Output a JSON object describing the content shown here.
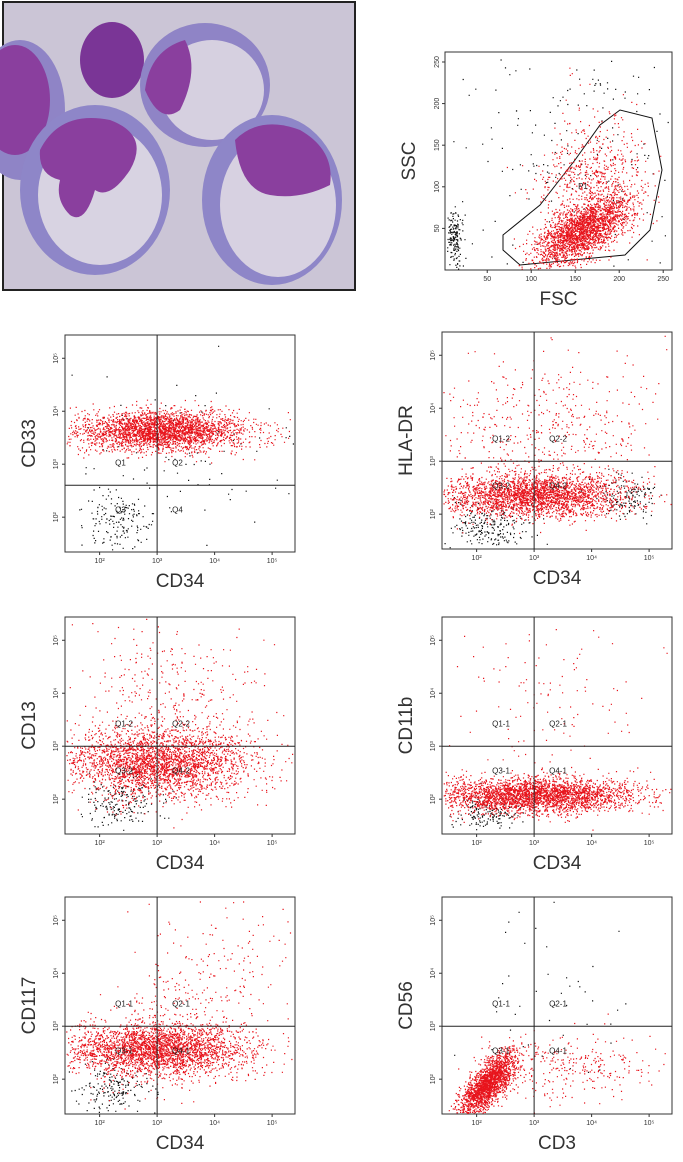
{
  "figure": {
    "gating_plot": {
      "type": "scatter",
      "x_label": "FSC",
      "y_label": "SSC",
      "gate_label": "P1",
      "xlim": [
        2,
        260
      ],
      "ylim": [
        0,
        262
      ],
      "xticks": [
        50,
        100,
        150,
        200,
        250
      ],
      "yticks": [
        50,
        100,
        150,
        200,
        250
      ]
    },
    "plots": [
      {
        "type": "scatter",
        "log_scale": true,
        "y_label": "CD33",
        "x_label": "CD34",
        "quadrants": [
          "Q1",
          "Q2",
          "Q3",
          "Q4"
        ],
        "xlim": [
          25,
          250000
        ],
        "ylim": [
          22,
          275000
        ],
        "x_gate": 1000,
        "y_gate": 400,
        "xticks": [
          {
            "value": 100,
            "label": "10²"
          },
          {
            "value": 1000,
            "label": "10³"
          },
          {
            "value": 10000,
            "label": "10⁴"
          },
          {
            "value": 100000,
            "label": "10⁵"
          }
        ],
        "yticks": [
          {
            "value": 100,
            "label": "10²"
          },
          {
            "value": 1000,
            "label": "10³"
          },
          {
            "value": 10000,
            "label": "10⁴"
          },
          {
            "value": 100000,
            "label": "10⁵"
          }
        ]
      },
      {
        "type": "scatter",
        "log_scale": true,
        "y_label": "HLA-DR",
        "x_label": "CD34",
        "quadrants": [
          "Q1-2",
          "Q2-2",
          "Q3-2",
          "Q4-2"
        ],
        "xlim": [
          25,
          250000
        ],
        "ylim": [
          22,
          275000
        ],
        "x_gate": 1000,
        "y_gate": 1000,
        "xticks": [
          {
            "value": 100,
            "label": "10²"
          },
          {
            "value": 1000,
            "label": "10³"
          },
          {
            "value": 10000,
            "label": "10⁴"
          },
          {
            "value": 100000,
            "label": "10⁵"
          }
        ],
        "yticks": [
          {
            "value": 100,
            "label": "10²"
          },
          {
            "value": 1000,
            "label": "10³"
          },
          {
            "value": 10000,
            "label": "10⁴"
          },
          {
            "value": 100000,
            "label": "10⁵"
          }
        ]
      },
      {
        "type": "scatter",
        "log_scale": true,
        "y_label": "CD13",
        "x_label": "CD34",
        "quadrants": [
          "Q1-2",
          "Q2-2",
          "Q3-2",
          "Q4-2"
        ],
        "xlim": [
          25,
          250000
        ],
        "ylim": [
          22,
          275000
        ],
        "x_gate": 1000,
        "y_gate": 1000,
        "xticks": [
          {
            "value": 100,
            "label": "10²"
          },
          {
            "value": 1000,
            "label": "10³"
          },
          {
            "value": 10000,
            "label": "10⁴"
          },
          {
            "value": 100000,
            "label": "10⁵"
          }
        ],
        "yticks": [
          {
            "value": 100,
            "label": "10²"
          },
          {
            "value": 1000,
            "label": "10³"
          },
          {
            "value": 10000,
            "label": "10⁴"
          },
          {
            "value": 100000,
            "label": "10⁵"
          }
        ]
      },
      {
        "type": "scatter",
        "log_scale": true,
        "y_label": "CD11b",
        "x_label": "CD34",
        "quadrants": [
          "Q1-1",
          "Q2-1",
          "Q3-1",
          "Q4-1"
        ],
        "xlim": [
          25,
          250000
        ],
        "ylim": [
          22,
          275000
        ],
        "x_gate": 1000,
        "y_gate": 1000,
        "xticks": [
          {
            "value": 100,
            "label": "10²"
          },
          {
            "value": 1000,
            "label": "10³"
          },
          {
            "value": 10000,
            "label": "10⁴"
          },
          {
            "value": 100000,
            "label": "10⁵"
          }
        ],
        "yticks": [
          {
            "value": 100,
            "label": "10²"
          },
          {
            "value": 1000,
            "label": "10³"
          },
          {
            "value": 10000,
            "label": "10⁴"
          },
          {
            "value": 100000,
            "label": "10⁵"
          }
        ]
      },
      {
        "type": "scatter",
        "log_scale": true,
        "y_label": "CD117",
        "x_label": "CD34",
        "quadrants": [
          "Q1-1",
          "Q2-1",
          "Q3-1",
          "Q4-1"
        ],
        "xlim": [
          25,
          250000
        ],
        "ylim": [
          22,
          275000
        ],
        "x_gate": 1000,
        "y_gate": 1000,
        "xticks": [
          {
            "value": 100,
            "label": "10²"
          },
          {
            "value": 1000,
            "label": "10³"
          },
          {
            "value": 10000,
            "label": "10⁴"
          },
          {
            "value": 100000,
            "label": "10⁵"
          }
        ],
        "yticks": [
          {
            "value": 100,
            "label": "10²"
          },
          {
            "value": 1000,
            "label": "10³"
          },
          {
            "value": 10000,
            "label": "10⁴"
          },
          {
            "value": 100000,
            "label": "10⁵"
          }
        ]
      },
      {
        "type": "scatter",
        "log_scale": true,
        "y_label": "CD56",
        "x_label": "CD3",
        "quadrants": [
          "Q1-1",
          "Q2-1",
          "Q3-1",
          "Q4-1"
        ],
        "xlim": [
          25,
          250000
        ],
        "ylim": [
          22,
          275000
        ],
        "x_gate": 1000,
        "y_gate": 1000,
        "xticks": [
          {
            "value": 100,
            "label": "10²"
          },
          {
            "value": 1000,
            "label": "10³"
          },
          {
            "value": 10000,
            "label": "10⁴"
          },
          {
            "value": 100000,
            "label": "10⁵"
          }
        ],
        "yticks": [
          {
            "value": 100,
            "label": "10²"
          },
          {
            "value": 1000,
            "label": "10³"
          },
          {
            "value": 10000,
            "label": "10⁴"
          },
          {
            "value": 100000,
            "label": "10⁵"
          }
        ]
      }
    ]
  }
}
